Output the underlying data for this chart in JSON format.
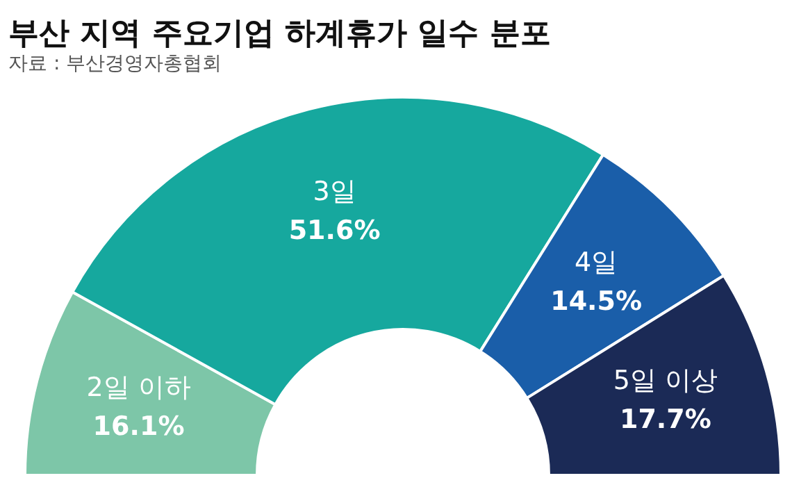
{
  "chart_data": {
    "type": "donut",
    "title": "부산 지역 주요기업 하계휴가 일수 분포",
    "subtitle": "자료 : 부산경영자총협회",
    "categories": [
      "2일 이하",
      "3일",
      "4일",
      "5일 이상"
    ],
    "values": [
      16.1,
      51.6,
      14.5,
      17.7
    ],
    "value_labels": [
      "16.1%",
      "51.6%",
      "14.5%",
      "17.7%"
    ],
    "colors": [
      "#7dc6a8",
      "#16a89e",
      "#1a5ea9",
      "#1b2a56"
    ]
  }
}
